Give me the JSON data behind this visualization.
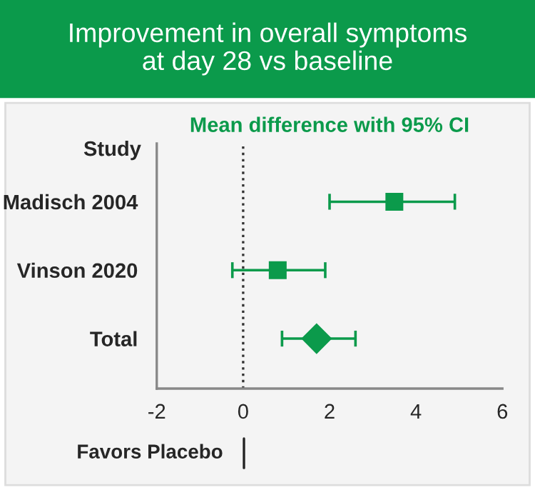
{
  "chart_data": {
    "type": "scatter",
    "orientation": "horizontal",
    "title": "Improvement in overall symptoms\nat day 28 vs baseline",
    "subtitle": "Mean difference with 95% CI",
    "ylabel": "Study",
    "categories": [
      "Madisch 2004",
      "Vinson 2020",
      "Total"
    ],
    "series": [
      {
        "color": "#0b9a4b",
        "marker": "square",
        "values": [
          3.5,
          0.8,
          null
        ],
        "errors": [
          [
            2.0,
            4.9
          ],
          [
            -0.25,
            1.9
          ],
          null
        ]
      },
      {
        "color": "#0b9a4b",
        "marker": "diamond",
        "values": [
          null,
          null,
          1.7
        ],
        "errors": [
          null,
          null,
          [
            0.9,
            2.6
          ]
        ]
      }
    ],
    "xlim": [
      -2,
      6
    ],
    "xticks": [
      -2,
      0,
      2,
      4,
      6
    ],
    "grid": false,
    "legend": false,
    "ref_lines": [
      {
        "axis": "x",
        "value": 0,
        "color": "#333333",
        "line_style": "dotted"
      }
    ],
    "annotations": [
      "Favors Placebo"
    ]
  }
}
